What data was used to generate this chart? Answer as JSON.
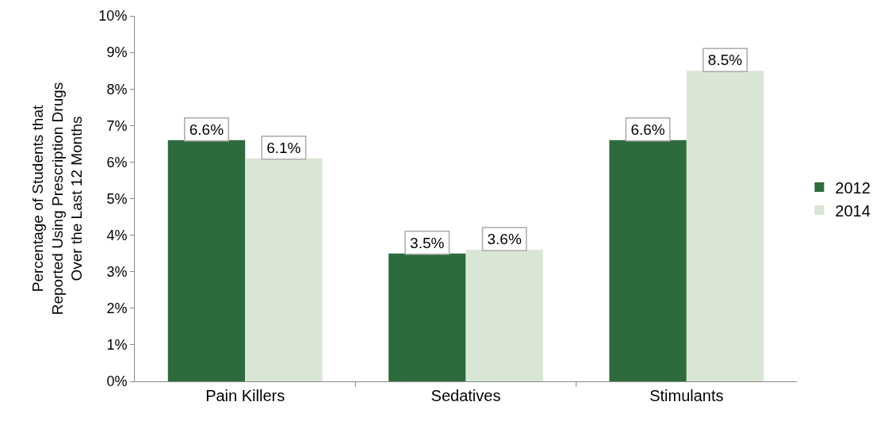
{
  "chart_data": {
    "type": "bar",
    "ylabel": "Percentage of Students that\nReported Using Prescription Drugs\nOver the Last 12 Months",
    "categories": [
      "Pain Killers",
      "Sedatives",
      "Stimulants"
    ],
    "series": [
      {
        "name": "2012",
        "color": "#2e6b3c",
        "values": [
          6.6,
          3.5,
          6.6
        ],
        "value_labels": [
          "6.6%",
          "3.5%",
          "6.6%"
        ]
      },
      {
        "name": "2014",
        "color": "#d9e6d5",
        "values": [
          6.1,
          3.6,
          8.5
        ],
        "value_labels": [
          "6.1%",
          "3.6%",
          "8.5%"
        ]
      }
    ],
    "ylim": [
      0,
      10
    ],
    "yticks": [
      {
        "value": 0,
        "label": "0%"
      },
      {
        "value": 1,
        "label": "1%"
      },
      {
        "value": 2,
        "label": "2%"
      },
      {
        "value": 3,
        "label": "3%"
      },
      {
        "value": 4,
        "label": "4%"
      },
      {
        "value": 5,
        "label": "5%"
      },
      {
        "value": 6,
        "label": "6%"
      },
      {
        "value": 7,
        "label": "7%"
      },
      {
        "value": 8,
        "label": "8%"
      },
      {
        "value": 9,
        "label": "9%"
      },
      {
        "value": 10,
        "label": "10%"
      }
    ],
    "grid": false,
    "legend": "right"
  }
}
